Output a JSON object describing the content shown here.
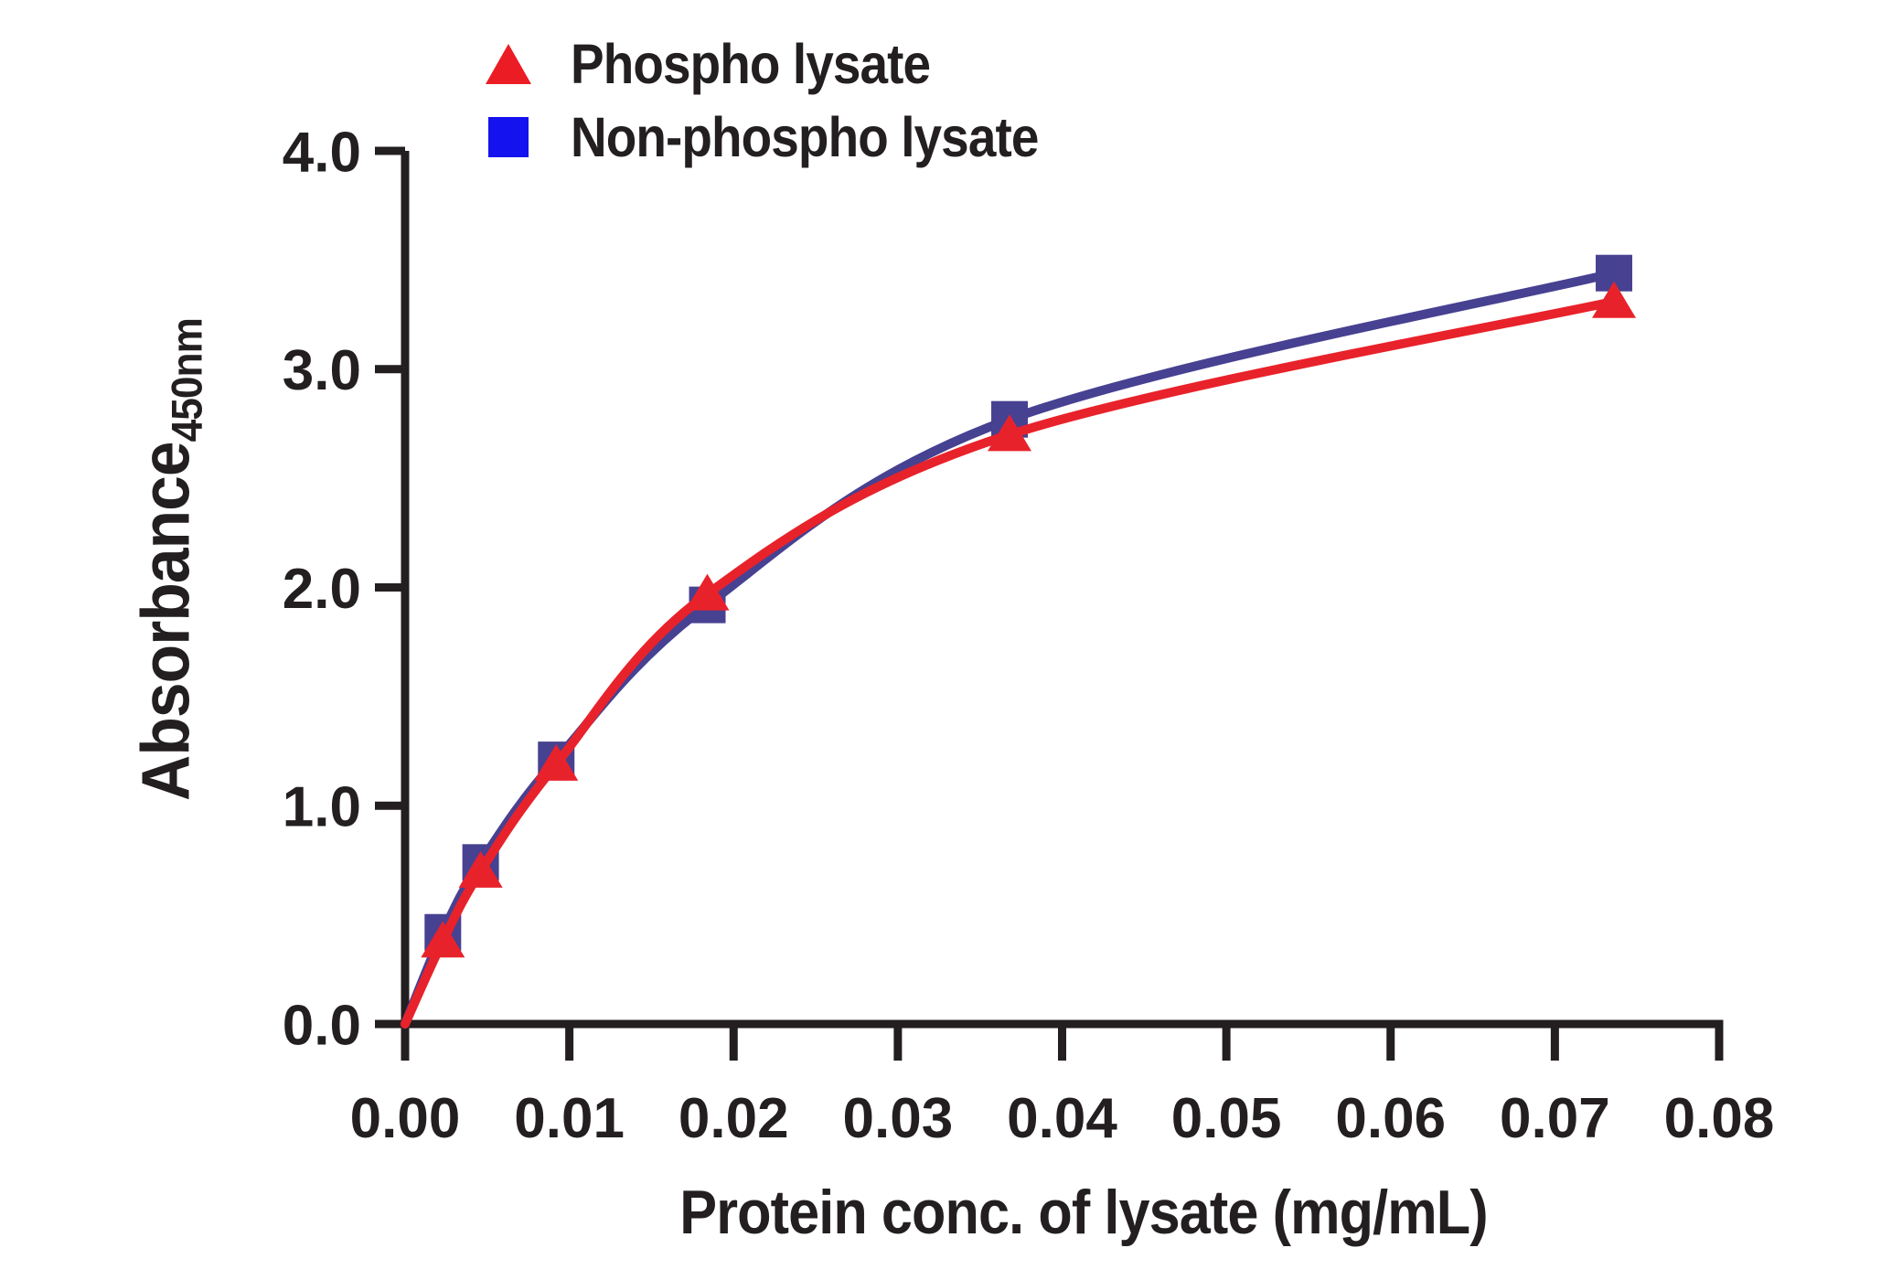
{
  "figure": {
    "legend": [
      {
        "label": "Phospho lysate",
        "marker": "triangle",
        "color": "#EC1C24"
      },
      {
        "label": "Non-phospho lysate",
        "marker": "square",
        "color": "#1412EE"
      }
    ],
    "y_title": "Absorbance",
    "y_title_subscript": "450nm",
    "x_title": "Protein conc. of lysate (mg/mL)"
  },
  "chart_data": {
    "type": "scatter",
    "title": "",
    "xlabel": "Protein conc. of lysate (mg/mL)",
    "ylabel": "Absorbance 450nm",
    "xlim": [
      0,
      0.08
    ],
    "ylim": [
      0,
      4.0
    ],
    "grid": false,
    "legend_position": "top-left",
    "x": [
      0.0023,
      0.0046,
      0.0092,
      0.0184,
      0.0368,
      0.0736
    ],
    "series": [
      {
        "name": "Phospho lysate",
        "marker": "triangle",
        "marker_color": "#E8222B",
        "curve_color": "#E8222B",
        "values": [
          0.38,
          0.7,
          1.19,
          1.97,
          2.7,
          3.31
        ],
        "fit_through_origin": true
      },
      {
        "name": "Non-phospho lysate",
        "marker": "square",
        "marker_color": "#474191",
        "curve_color": "#474191",
        "values": [
          0.42,
          0.74,
          1.21,
          1.92,
          2.77,
          3.44
        ],
        "fit_through_origin": true
      }
    ],
    "xticks": [
      "0.00",
      "0.01",
      "0.02",
      "0.03",
      "0.04",
      "0.05",
      "0.06",
      "0.07",
      "0.08"
    ],
    "yticks": [
      "0.0",
      "1.0",
      "2.0",
      "3.0",
      "4.0"
    ],
    "axis_color": "#231F20"
  }
}
